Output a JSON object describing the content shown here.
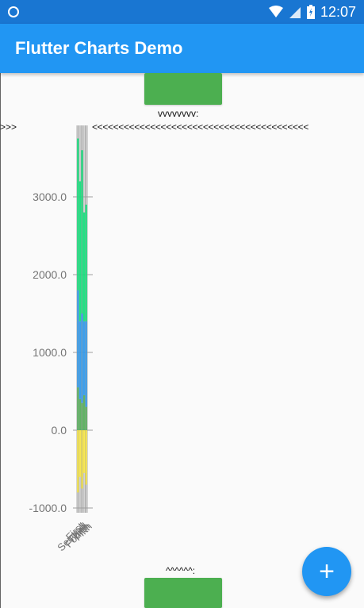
{
  "status_bar": {
    "time": "12:07",
    "icons": [
      "circle-status-icon",
      "wifi-icon",
      "signal-icon",
      "battery-charging-icon"
    ],
    "color": "#1976d2"
  },
  "app_bar": {
    "title": "Flutter Charts Demo",
    "color": "#2196f3"
  },
  "markers": {
    "top_label": "vvvvvvvv:",
    "left_arrows": ">>>",
    "right_arrows": "<<<<<<<<<<<<<<<<<<<<<<<<<<<<<<<<<<<<<<<<<",
    "bottom_label": "^^^^^^:"
  },
  "fab": {
    "icon": "plus-icon",
    "label": "+",
    "color": "#2196f3"
  },
  "chart_data": {
    "type": "bar",
    "stacked": true,
    "ylim": [
      -1000,
      3800
    ],
    "yticks": [
      -1000,
      0,
      1000,
      2000,
      3000
    ],
    "ytick_labels": [
      "-1000.0",
      "0.0",
      "1000.0",
      "2000.0",
      "3000.0"
    ],
    "categories": [
      "First",
      "Second",
      "Third",
      "Fourth",
      "Fifth"
    ],
    "category_labels_visible": [
      "First",
      "Fifth"
    ],
    "series": [
      {
        "color": "#ffeb3b",
        "values": [
          -800,
          -600,
          -750,
          -550,
          -700
        ]
      },
      {
        "color": "#4caf50",
        "values": [
          550,
          400,
          350,
          450,
          300
        ]
      },
      {
        "color": "#2196f3",
        "values": [
          1250,
          1000,
          1150,
          950,
          1100
        ]
      },
      {
        "color": "#00e676",
        "values": [
          1950,
          1800,
          2100,
          1400,
          1500
        ]
      }
    ]
  }
}
